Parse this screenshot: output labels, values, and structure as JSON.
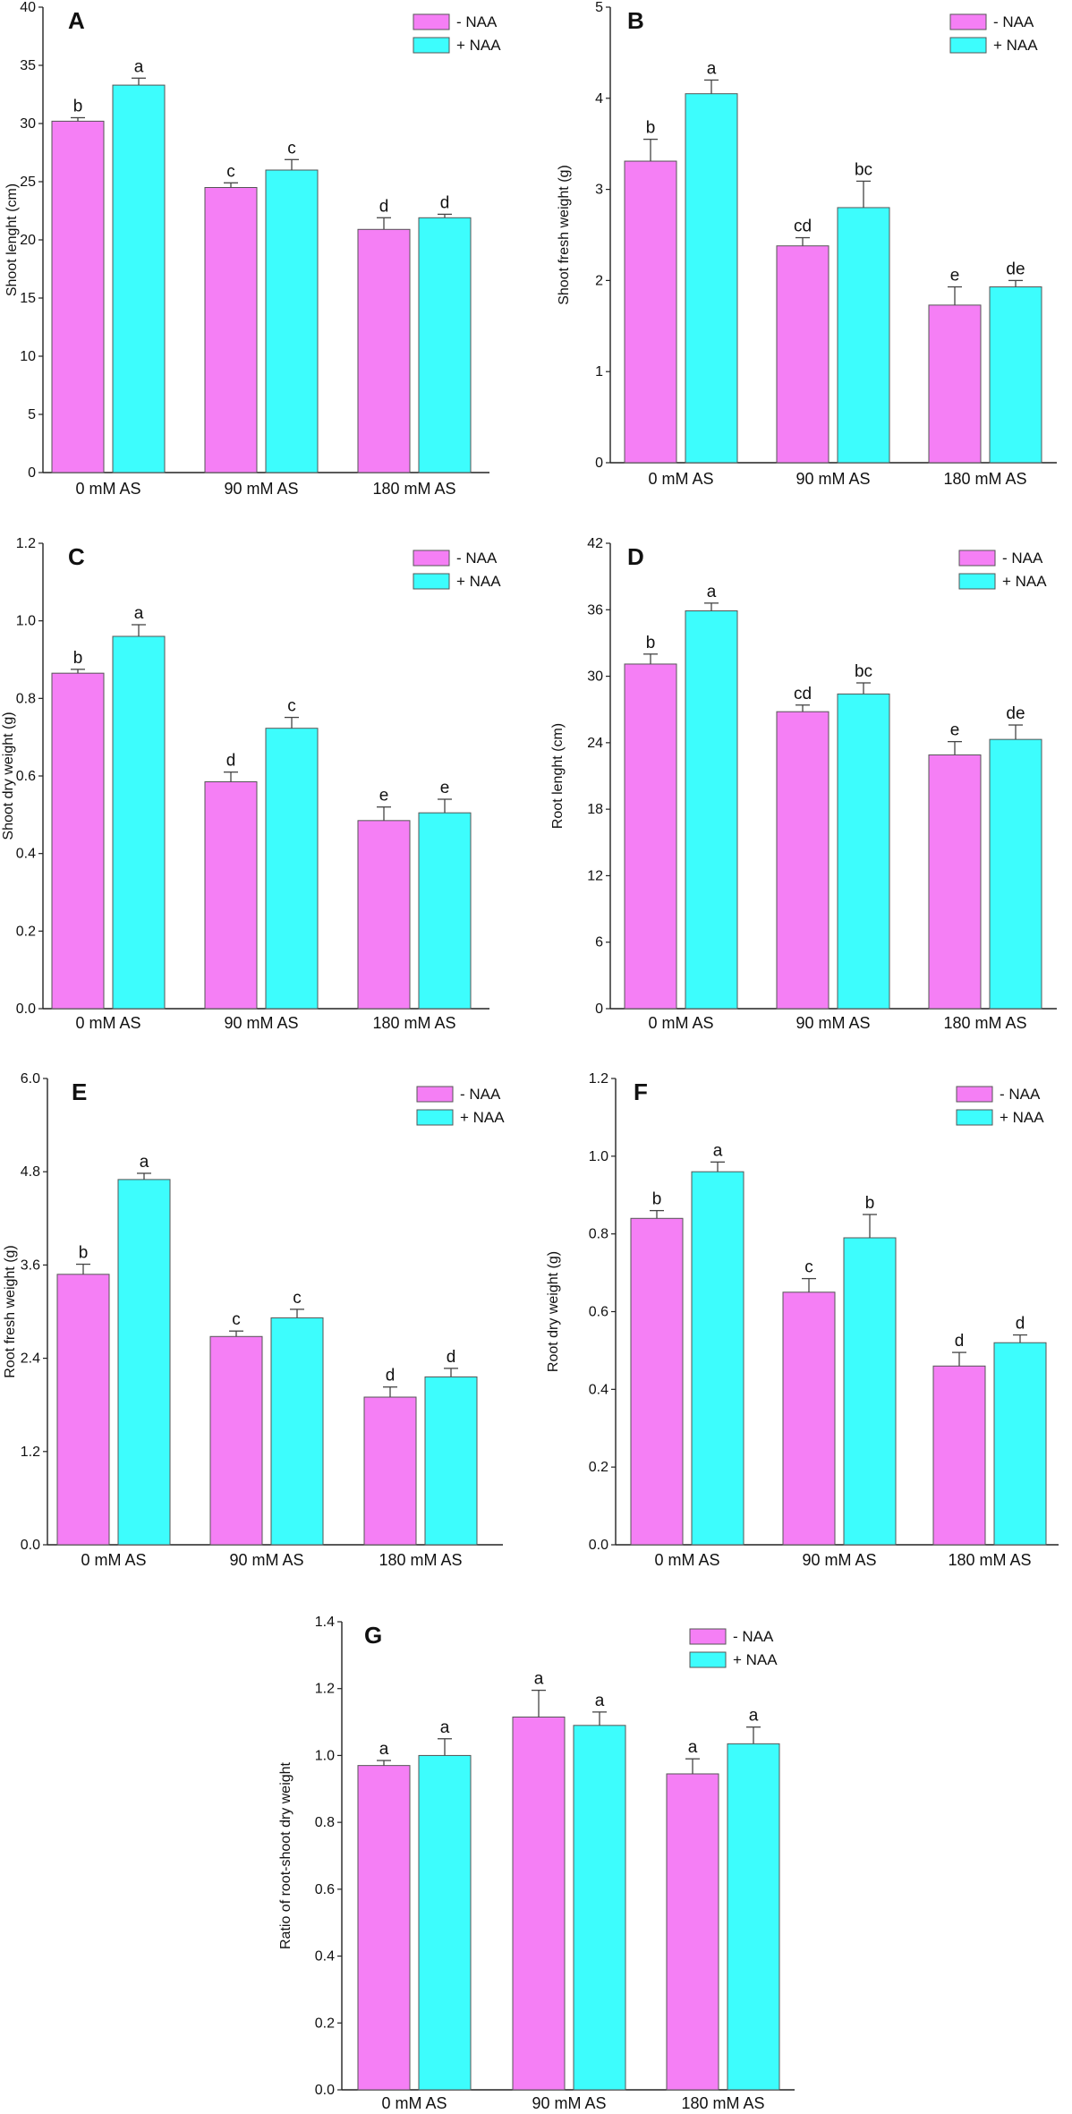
{
  "legend": [
    "- NAA",
    "+ NAA"
  ],
  "colors": {
    "minus": "#f57ff5",
    "plus": "#3dfdfd",
    "axis": "#222222",
    "error": "#444444"
  },
  "chart_data": [
    {
      "type": "bar",
      "panel": "A",
      "ylabel": "Shoot lenght (cm)",
      "categories": [
        "0 mM AS",
        "90 mM AS",
        "180 mM AS"
      ],
      "ylim": [
        0,
        40
      ],
      "ticks": [
        0,
        5,
        10,
        15,
        20,
        25,
        30,
        35,
        40
      ],
      "tick_labels": [
        "0",
        "5",
        "10",
        "15",
        "20",
        "25",
        "30",
        "35",
        "40"
      ],
      "series": [
        {
          "name": "- NAA",
          "values": [
            30.2,
            24.5,
            20.9
          ],
          "errors": [
            0.3,
            0.4,
            1.0
          ],
          "letters": [
            "b",
            "c",
            "d"
          ]
        },
        {
          "name": "+ NAA",
          "values": [
            33.3,
            26.0,
            21.9
          ],
          "errors": [
            0.6,
            0.9,
            0.3
          ],
          "letters": [
            "a",
            "c",
            "d"
          ]
        }
      ]
    },
    {
      "type": "bar",
      "panel": "B",
      "ylabel": "Shoot fresh weight (g)",
      "categories": [
        "0 mM AS",
        "90 mM AS",
        "180 mM AS"
      ],
      "ylim": [
        0,
        5
      ],
      "ticks": [
        0,
        1,
        2,
        3,
        4,
        5
      ],
      "tick_labels": [
        "0",
        "1",
        "2",
        "3",
        "4",
        "5"
      ],
      "series": [
        {
          "name": "- NAA",
          "values": [
            3.31,
            2.38,
            1.73
          ],
          "errors": [
            0.24,
            0.09,
            0.2
          ],
          "letters": [
            "b",
            "cd",
            "e"
          ]
        },
        {
          "name": "+ NAA",
          "values": [
            4.05,
            2.8,
            1.93
          ],
          "errors": [
            0.15,
            0.29,
            0.07
          ],
          "letters": [
            "a",
            "bc",
            "de"
          ]
        }
      ]
    },
    {
      "type": "bar",
      "panel": "C",
      "ylabel": "Shoot dry weight (g)",
      "categories": [
        "0 mM AS",
        "90 mM AS",
        "180 mM AS"
      ],
      "ylim": [
        0,
        1.2
      ],
      "ticks": [
        0,
        0.2,
        0.4,
        0.6,
        0.8,
        1.0,
        1.2
      ],
      "tick_labels": [
        "0.0",
        "0.2",
        "0.4",
        "0.6",
        "0.8",
        "1.0",
        "1.2"
      ],
      "series": [
        {
          "name": "- NAA",
          "values": [
            0.865,
            0.585,
            0.485
          ],
          "errors": [
            0.01,
            0.025,
            0.035
          ],
          "letters": [
            "b",
            "d",
            "e"
          ]
        },
        {
          "name": "+ NAA",
          "values": [
            0.96,
            0.723,
            0.505
          ],
          "errors": [
            0.03,
            0.028,
            0.035
          ],
          "letters": [
            "a",
            "c",
            "e"
          ]
        }
      ]
    },
    {
      "type": "bar",
      "panel": "D",
      "ylabel": "Root lenght (cm)",
      "categories": [
        "0 mM AS",
        "90 mM AS",
        "180 mM AS"
      ],
      "ylim": [
        0,
        42
      ],
      "ticks": [
        0,
        6,
        12,
        18,
        24,
        30,
        36,
        42
      ],
      "tick_labels": [
        "0",
        "6",
        "12",
        "18",
        "24",
        "30",
        "36",
        "42"
      ],
      "series": [
        {
          "name": "- NAA",
          "values": [
            31.1,
            26.8,
            22.9
          ],
          "errors": [
            0.9,
            0.6,
            1.2
          ],
          "letters": [
            "b",
            "cd",
            "e"
          ]
        },
        {
          "name": "+ NAA",
          "values": [
            35.9,
            28.4,
            24.3
          ],
          "errors": [
            0.7,
            1.0,
            1.3
          ],
          "letters": [
            "a",
            "bc",
            "de"
          ]
        }
      ]
    },
    {
      "type": "bar",
      "panel": "E",
      "ylabel": "Root fresh weight (g)",
      "categories": [
        "0 mM AS",
        "90 mM AS",
        "180 mM AS"
      ],
      "ylim": [
        0,
        6
      ],
      "ticks": [
        0,
        1.2,
        2.4,
        3.6,
        4.8,
        6.0
      ],
      "tick_labels": [
        "0.0",
        "1.2",
        "2.4",
        "3.6",
        "4.8",
        "6.0"
      ],
      "series": [
        {
          "name": "- NAA",
          "values": [
            3.48,
            2.68,
            1.9
          ],
          "errors": [
            0.13,
            0.07,
            0.13
          ],
          "letters": [
            "b",
            "c",
            "d"
          ]
        },
        {
          "name": "+ NAA",
          "values": [
            4.7,
            2.92,
            2.16
          ],
          "errors": [
            0.08,
            0.11,
            0.11
          ],
          "letters": [
            "a",
            "c",
            "d"
          ]
        }
      ]
    },
    {
      "type": "bar",
      "panel": "F",
      "ylabel": "Root dry weight (g)",
      "categories": [
        "0 mM AS",
        "90 mM AS",
        "180 mM AS"
      ],
      "ylim": [
        0,
        1.2
      ],
      "ticks": [
        0,
        0.2,
        0.4,
        0.6,
        0.8,
        1.0,
        1.2
      ],
      "tick_labels": [
        "0.0",
        "0.2",
        "0.4",
        "0.6",
        "0.8",
        "1.0",
        "1.2"
      ],
      "series": [
        {
          "name": "- NAA",
          "values": [
            0.84,
            0.65,
            0.46
          ],
          "errors": [
            0.02,
            0.035,
            0.035
          ],
          "letters": [
            "b",
            "c",
            "d"
          ]
        },
        {
          "name": "+ NAA",
          "values": [
            0.96,
            0.79,
            0.52
          ],
          "errors": [
            0.025,
            0.06,
            0.02
          ],
          "letters": [
            "a",
            "b",
            "d"
          ]
        }
      ]
    },
    {
      "type": "bar",
      "panel": "G",
      "ylabel": "Ratio of root-shoot dry weight",
      "categories": [
        "0 mM AS",
        "90 mM AS",
        "180 mM AS"
      ],
      "ylim": [
        0,
        1.4
      ],
      "ticks": [
        0,
        0.2,
        0.4,
        0.6,
        0.8,
        1.0,
        1.2,
        1.4
      ],
      "tick_labels": [
        "0.0",
        "0.2",
        "0.4",
        "0.6",
        "0.8",
        "1.0",
        "1.2",
        "1.4"
      ],
      "series": [
        {
          "name": "- NAA",
          "values": [
            0.97,
            1.115,
            0.945
          ],
          "errors": [
            0.015,
            0.08,
            0.045
          ],
          "letters": [
            "a",
            "a",
            "a"
          ]
        },
        {
          "name": "+ NAA",
          "values": [
            1.0,
            1.09,
            1.035
          ],
          "errors": [
            0.05,
            0.04,
            0.05
          ],
          "letters": [
            "a",
            "a",
            "a"
          ]
        }
      ]
    }
  ]
}
